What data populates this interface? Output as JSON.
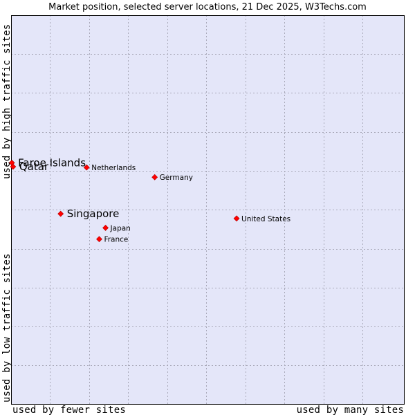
{
  "chart_data": {
    "type": "scatter",
    "title": "Market position, selected server locations, 21 Dec 2025, W3Techs.com",
    "xlabel_left": "used by fewer sites",
    "xlabel_right": "used by many sites",
    "ylabel_bottom": "used by low traffic sites",
    "ylabel_top": "used by high traffic sites",
    "xlim": [
      0,
      100
    ],
    "ylim": [
      0,
      100
    ],
    "grid": true,
    "background_color": "#e4e6f9",
    "point_color": "#ff0000",
    "points": [
      {
        "name": "Faroe Islands",
        "x": 0.2,
        "y": 62.1,
        "emphasis": "large"
      },
      {
        "name": "Qatar",
        "x": 0.5,
        "y": 61.1,
        "emphasis": "large"
      },
      {
        "name": "Netherlands",
        "x": 19.2,
        "y": 60.9,
        "emphasis": "normal"
      },
      {
        "name": "Germany",
        "x": 36.5,
        "y": 58.4,
        "emphasis": "normal"
      },
      {
        "name": "Singapore",
        "x": 12.6,
        "y": 49.0,
        "emphasis": "large"
      },
      {
        "name": "United States",
        "x": 57.3,
        "y": 47.8,
        "emphasis": "normal"
      },
      {
        "name": "Japan",
        "x": 24.0,
        "y": 45.4,
        "emphasis": "normal"
      },
      {
        "name": "France",
        "x": 22.4,
        "y": 42.5,
        "emphasis": "normal"
      }
    ]
  }
}
